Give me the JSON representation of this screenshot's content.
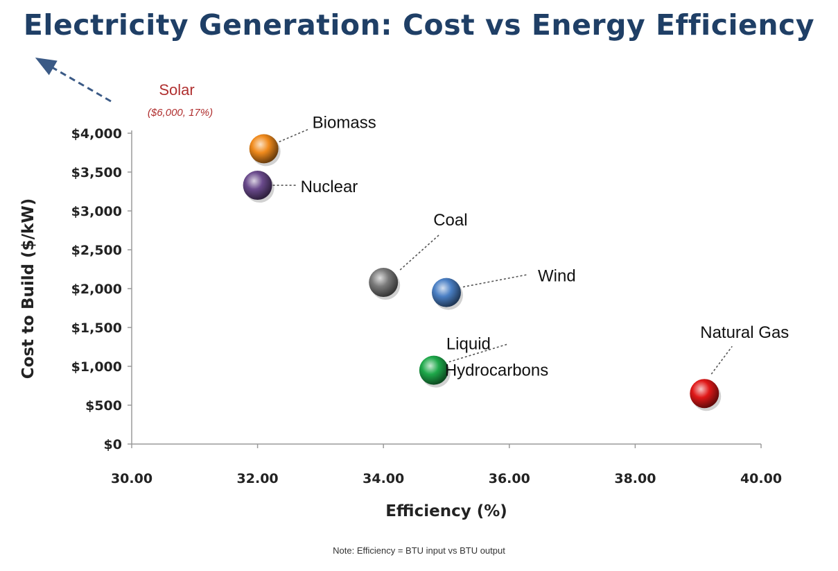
{
  "chart_data": {
    "type": "scatter",
    "title": "Electricity Generation: Cost vs Energy Efficiency",
    "xlabel": "Efficiency (%)",
    "ylabel": "Cost to Build ($/kW)",
    "xlim": [
      30,
      40
    ],
    "ylim": [
      0,
      4000
    ],
    "x_ticks": [
      "30.00",
      "32.00",
      "34.00",
      "36.00",
      "38.00",
      "40.00"
    ],
    "y_ticks": [
      "$0",
      "$500",
      "$1,000",
      "$1,500",
      "$2,000",
      "$2,500",
      "$3,000",
      "$3,500",
      "$4,000"
    ],
    "grid": false,
    "points": [
      {
        "name": "Biomass",
        "x": 32.1,
        "y": 3800,
        "color": "#f08a1c",
        "label_lines": [
          "Biomass"
        ]
      },
      {
        "name": "Nuclear",
        "x": 32.0,
        "y": 3330,
        "color": "#6a4a8c",
        "label_lines": [
          "Nuclear"
        ]
      },
      {
        "name": "Coal",
        "x": 34.0,
        "y": 2080,
        "color": "#7a7a7a",
        "label_lines": [
          "Coal"
        ]
      },
      {
        "name": "Wind",
        "x": 35.0,
        "y": 1950,
        "color": "#4a7fc4",
        "label_lines": [
          "Wind"
        ]
      },
      {
        "name": "Liquid Hydrocarbons",
        "x": 34.8,
        "y": 950,
        "color": "#1ea84a",
        "label_lines": [
          "Liquid",
          "Hydrocarbons"
        ]
      },
      {
        "name": "Natural Gas",
        "x": 39.1,
        "y": 650,
        "color": "#e01818",
        "label_lines": [
          "Natural Gas"
        ]
      }
    ],
    "off_chart": {
      "name": "Solar",
      "label": "Solar",
      "value_label": "($6,000, 17%)",
      "x": 17,
      "y": 6000,
      "direction": "top-left"
    },
    "note": "Note: Efficiency = BTU input vs BTU output"
  }
}
